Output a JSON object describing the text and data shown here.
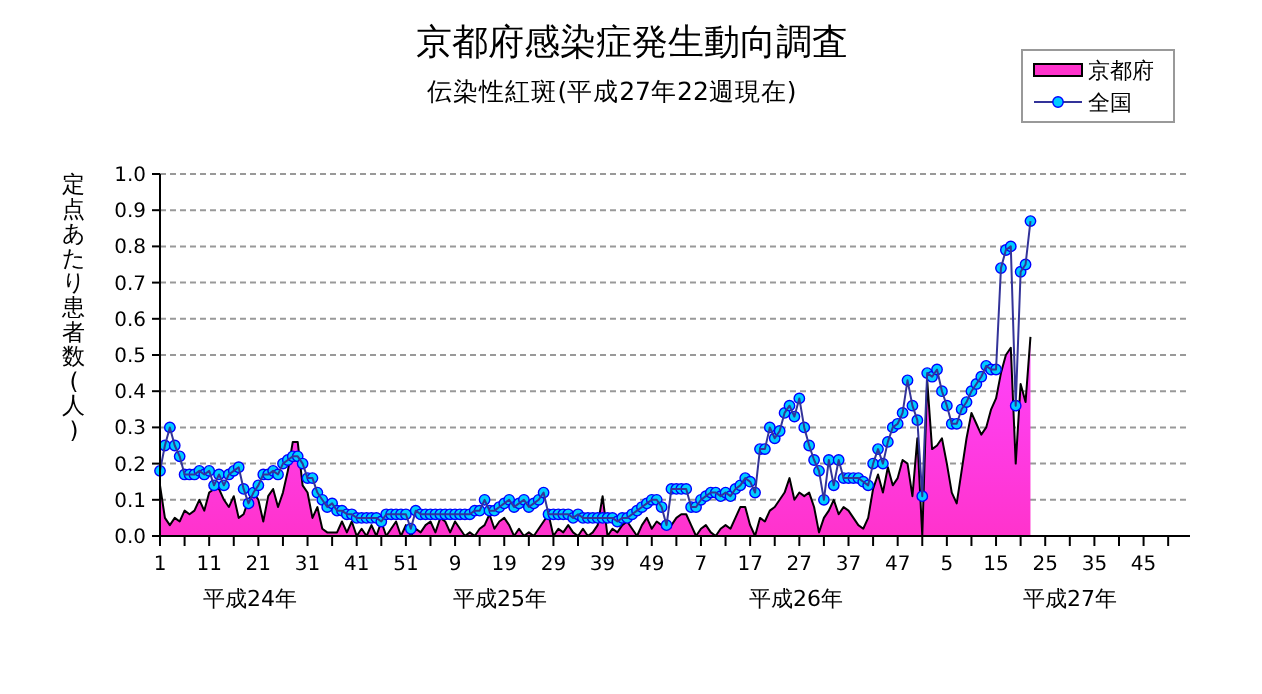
{
  "chart_data": {
    "type": "line",
    "title": "京都府感染症発生動向調査",
    "subtitle": "伝染性紅斑(平成27年22週現在)",
    "ylabel": "定点あたり患者数(人)",
    "ylim": [
      0,
      1
    ],
    "yticks": [
      {
        "value": 0,
        "label": "0.0"
      },
      0.1,
      0.2,
      0.3,
      0.4,
      0.5,
      0.6,
      0.7,
      0.8,
      0.9,
      {
        "value": 1,
        "label": "1.0"
      }
    ],
    "categories": [
      "1",
      null,
      null,
      null,
      null,
      null,
      null,
      null,
      null,
      null,
      "11",
      null,
      null,
      null,
      null,
      null,
      null,
      null,
      null,
      null,
      "21",
      null,
      null,
      null,
      null,
      null,
      null,
      null,
      null,
      null,
      "31",
      null,
      null,
      null,
      null,
      null,
      null,
      null,
      null,
      null,
      "41",
      null,
      null,
      null,
      null,
      null,
      null,
      null,
      null,
      null,
      "51",
      null,
      null,
      null,
      null,
      null,
      null,
      null,
      null,
      null,
      "9",
      null,
      null,
      null,
      null,
      null,
      null,
      null,
      null,
      null,
      "19",
      null,
      null,
      null,
      null,
      null,
      null,
      null,
      null,
      null,
      "29",
      null,
      null,
      null,
      null,
      null,
      null,
      null,
      null,
      null,
      "39",
      null,
      null,
      null,
      null,
      null,
      null,
      null,
      null,
      null,
      "49",
      null,
      null,
      null,
      null,
      null,
      null,
      null,
      null,
      null,
      "7",
      null,
      null,
      null,
      null,
      null,
      null,
      null,
      null,
      null,
      "17",
      null,
      null,
      null,
      null,
      null,
      null,
      null,
      null,
      null,
      "27",
      null,
      null,
      null,
      null,
      null,
      null,
      null,
      null,
      null,
      "37",
      null,
      null,
      null,
      null,
      null,
      null,
      null,
      null,
      null,
      "47",
      null,
      null,
      null,
      null,
      null,
      null,
      null,
      null,
      null,
      "5",
      null,
      null,
      null,
      null,
      null,
      null,
      null,
      null,
      null,
      "15",
      null,
      null,
      null,
      null,
      null,
      null,
      null,
      null,
      null,
      "25",
      null,
      null,
      null,
      null,
      null,
      null,
      null,
      null,
      null,
      "35",
      null,
      null,
      null,
      null,
      null,
      null,
      null,
      null,
      null,
      "45",
      null,
      null,
      null,
      null,
      null,
      null,
      null
    ],
    "grid": "y",
    "legend": "top right",
    "series": [
      {
        "name": "京都府",
        "type": "area",
        "color": "#ff33cc",
        "values": [
          0.14,
          0.05,
          0.03,
          0.05,
          0.04,
          0.07,
          0.06,
          0.07,
          0.1,
          0.07,
          0.12,
          0.13,
          0.13,
          0.1,
          0.08,
          0.11,
          0.05,
          0.06,
          0.1,
          0.12,
          0.1,
          0.04,
          0.11,
          0.13,
          0.08,
          0.12,
          0.18,
          0.26,
          0.26,
          0.14,
          0.12,
          0.05,
          0.08,
          0.02,
          0.01,
          0.01,
          0.01,
          0.04,
          0.01,
          0.04,
          0.0,
          0.02,
          0.0,
          0.03,
          0.0,
          0.04,
          0.0,
          0.02,
          0.04,
          0.0,
          0.03,
          0.0,
          0.02,
          0.01,
          0.03,
          0.04,
          0.01,
          0.05,
          0.04,
          0.01,
          0.04,
          0.02,
          0.0,
          0.01,
          0.0,
          0.02,
          0.03,
          0.06,
          0.02,
          0.04,
          0.05,
          0.03,
          0.0,
          0.02,
          0.0,
          0.01,
          0.0,
          0.02,
          0.04,
          0.06,
          0.0,
          0.02,
          0.01,
          0.03,
          0.01,
          0.0,
          0.02,
          0.0,
          0.01,
          0.03,
          0.11,
          0.0,
          0.02,
          0.01,
          0.03,
          0.04,
          0.02,
          0.0,
          0.03,
          0.05,
          0.02,
          0.04,
          0.03,
          0.03,
          0.03,
          0.05,
          0.06,
          0.06,
          0.03,
          0.0,
          0.02,
          0.03,
          0.01,
          0.0,
          0.02,
          0.03,
          0.02,
          0.05,
          0.08,
          0.08,
          0.03,
          0.0,
          0.05,
          0.04,
          0.07,
          0.08,
          0.1,
          0.12,
          0.16,
          0.1,
          0.12,
          0.11,
          0.12,
          0.08,
          0.01,
          0.05,
          0.07,
          0.1,
          0.06,
          0.08,
          0.07,
          0.05,
          0.03,
          0.02,
          0.05,
          0.13,
          0.17,
          0.12,
          0.19,
          0.14,
          0.16,
          0.21,
          0.2,
          0.11,
          0.27,
          0.0,
          0.43,
          0.24,
          0.25,
          0.27,
          0.2,
          0.12,
          0.09,
          0.18,
          0.27,
          0.34,
          0.31,
          0.28,
          0.3,
          0.35,
          0.38,
          0.45,
          0.5,
          0.52,
          0.2,
          0.42,
          0.37,
          0.55,
          null,
          null,
          null,
          null,
          null,
          null,
          null,
          null,
          null,
          null,
          null,
          null,
          null,
          null,
          null,
          null,
          null,
          null,
          null,
          null,
          null,
          null,
          null,
          null,
          null,
          null,
          null,
          null,
          null,
          null
        ]
      },
      {
        "name": "全国",
        "marker": "circle",
        "color": "#00ccff",
        "values": [
          0.18,
          0.25,
          0.3,
          0.25,
          0.22,
          0.17,
          0.17,
          0.17,
          0.18,
          0.17,
          0.18,
          0.14,
          0.17,
          0.14,
          0.17,
          0.18,
          0.19,
          0.13,
          0.09,
          0.12,
          0.14,
          0.17,
          0.17,
          0.18,
          0.17,
          0.2,
          0.21,
          0.22,
          0.22,
          0.2,
          0.16,
          0.16,
          0.12,
          0.1,
          0.08,
          0.09,
          0.07,
          0.07,
          0.06,
          0.06,
          0.05,
          0.05,
          0.05,
          0.05,
          0.05,
          0.04,
          0.06,
          0.06,
          0.06,
          0.06,
          0.06,
          0.02,
          0.07,
          0.06,
          0.06,
          0.06,
          0.06,
          0.06,
          0.06,
          0.06,
          0.06,
          0.06,
          0.06,
          0.06,
          0.07,
          0.07,
          0.1,
          0.07,
          0.07,
          0.08,
          0.09,
          0.1,
          0.08,
          0.09,
          0.1,
          0.08,
          0.09,
          0.1,
          0.12,
          0.06,
          0.06,
          0.06,
          0.06,
          0.06,
          0.05,
          0.06,
          0.05,
          0.05,
          0.05,
          0.05,
          0.05,
          0.05,
          0.05,
          0.04,
          0.05,
          0.05,
          0.06,
          0.07,
          0.08,
          0.09,
          0.1,
          0.1,
          0.08,
          0.03,
          0.13,
          0.13,
          0.13,
          0.13,
          0.08,
          0.08,
          0.1,
          0.11,
          0.12,
          0.12,
          0.11,
          0.12,
          0.11,
          0.13,
          0.14,
          0.16,
          0.15,
          0.12,
          0.24,
          0.24,
          0.3,
          0.27,
          0.29,
          0.34,
          0.36,
          0.33,
          0.38,
          0.3,
          0.25,
          0.21,
          0.18,
          0.1,
          0.21,
          0.14,
          0.21,
          0.16,
          0.16,
          0.16,
          0.16,
          0.15,
          0.14,
          0.2,
          0.24,
          0.2,
          0.26,
          0.3,
          0.31,
          0.34,
          0.43,
          0.36,
          0.32,
          0.11,
          0.45,
          0.44,
          0.46,
          0.4,
          0.36,
          0.31,
          0.31,
          0.35,
          0.37,
          0.4,
          0.42,
          0.44,
          0.47,
          0.46,
          0.46,
          0.74,
          0.79,
          0.8,
          0.36,
          0.73,
          0.75,
          0.87,
          null,
          null,
          null,
          null,
          null,
          null,
          null,
          null,
          null,
          null,
          null,
          null,
          null,
          null,
          null,
          null,
          null,
          null,
          null,
          null,
          null,
          null,
          null,
          null,
          null,
          null,
          null,
          null,
          null,
          null
        ]
      }
    ],
    "annotations": [
      "平成24年",
      "平成25年",
      "平成26年",
      "平成27年"
    ]
  }
}
